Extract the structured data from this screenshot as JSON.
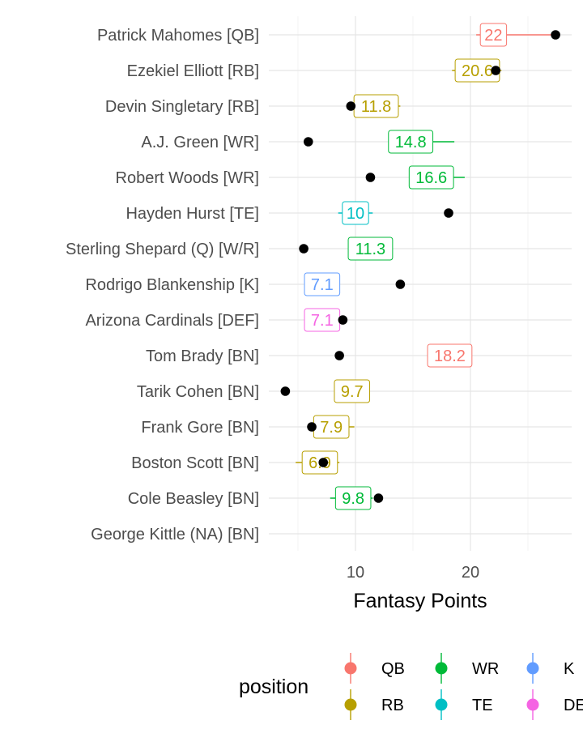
{
  "chart_data": {
    "type": "scatter",
    "title": "",
    "xlabel": "Fantasy Points",
    "ylabel": "",
    "xlim": [
      2,
      31.5
    ],
    "xticks": [
      10,
      20
    ],
    "grid": true,
    "legend_position": "bottom",
    "legend_title": "position",
    "position_colors": {
      "QB": "#F8766D",
      "RB": "#B79F00",
      "WR": "#00BA38",
      "TE": "#00BFC4",
      "K": "#619CFF",
      "DEF": "#F564E3"
    },
    "legend_entries": [
      "QB",
      "RB",
      "WR",
      "TE",
      "K",
      "DEF"
    ],
    "players": [
      {
        "name": "Patrick Mahomes [QB]",
        "position": "QB",
        "projection_label": "22",
        "projection": 22,
        "range": [
          20.5,
          27.5
        ],
        "actual": 27.4
      },
      {
        "name": "Ezekiel Elliott [RB]",
        "position": "RB",
        "projection_label": "20.6",
        "projection": 20.6,
        "range": [
          18.4,
          22.7
        ],
        "actual": 22.2
      },
      {
        "name": "Devin Singletary [RB]",
        "position": "RB",
        "projection_label": "11.8",
        "projection": 11.8,
        "range": [
          9.9,
          13.9
        ],
        "actual": 9.6
      },
      {
        "name": "A.J. Green [WR]",
        "position": "WR",
        "projection_label": "14.8",
        "projection": 14.8,
        "range": [
          13.0,
          18.6
        ],
        "actual": 5.9
      },
      {
        "name": "Robert Woods [WR]",
        "position": "WR",
        "projection_label": "16.6",
        "projection": 16.6,
        "range": [
          14.9,
          19.5
        ],
        "actual": 11.3
      },
      {
        "name": "Hayden Hurst [TE]",
        "position": "TE",
        "projection_label": "10",
        "projection": 10,
        "range": [
          8.5,
          11.5
        ],
        "actual": 18.1
      },
      {
        "name": "Sterling Shepard (Q) [W/R]",
        "position": "WR",
        "projection_label": "11.3",
        "projection": 11.3,
        "range": [
          9.6,
          13.0
        ],
        "actual": 5.5
      },
      {
        "name": "Rodrigo Blankenship [K]",
        "position": "K",
        "projection_label": "7.1",
        "projection": 7.1,
        "range": [
          6.2,
          8.0
        ],
        "actual": 13.9
      },
      {
        "name": "Arizona Cardinals [DEF]",
        "position": "DEF",
        "projection_label": "7.1",
        "projection": 7.1,
        "range": [
          6.0,
          8.5
        ],
        "actual": 8.9
      },
      {
        "name": "Tom Brady [BN]",
        "position": "QB",
        "projection_label": "18.2",
        "projection": 18.2,
        "range": [
          16.5,
          20.0
        ],
        "actual": 8.6
      },
      {
        "name": "Tarik Cohen [BN]",
        "position": "RB",
        "projection_label": "9.7",
        "projection": 9.7,
        "range": [
          8.3,
          11.2
        ],
        "actual": 3.9
      },
      {
        "name": "Frank Gore [BN]",
        "position": "RB",
        "projection_label": "7.9",
        "projection": 7.9,
        "range": [
          6.4,
          9.9
        ],
        "actual": 6.2
      },
      {
        "name": "Boston Scott [BN]",
        "position": "RB",
        "projection_label": "6.9",
        "projection": 6.9,
        "range": [
          4.8,
          8.6
        ],
        "actual": 7.2
      },
      {
        "name": "Cole Beasley [BN]",
        "position": "WR",
        "projection_label": "9.8",
        "projection": 9.8,
        "range": [
          7.8,
          11.5
        ],
        "actual": 12.0
      },
      {
        "name": "George Kittle (NA) [BN]",
        "position": "",
        "projection_label": "",
        "projection": null,
        "range": null,
        "actual": null
      }
    ]
  }
}
